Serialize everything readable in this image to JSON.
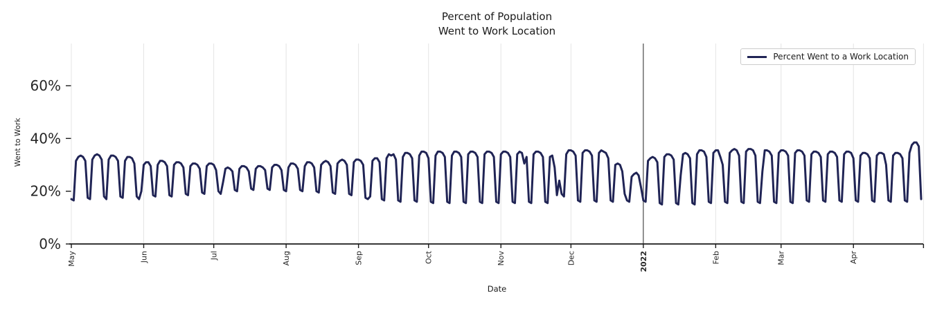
{
  "title": {
    "line1": "Percent of Population",
    "line2": "Went to Work Location"
  },
  "axes": {
    "x_label": "Date",
    "y_label": "Went to Work"
  },
  "legend": {
    "label": "Percent Went to a Work Location"
  },
  "colors": {
    "line": "#202455",
    "grid": "#e4e4e4",
    "vline": "#3b3b3b",
    "axis": "#1a1a1a",
    "text": "#262626"
  },
  "chart_data": {
    "type": "line",
    "title": "Percent of Population\nWent to Work Location",
    "xlabel": "Date",
    "ylabel": "Went to Work",
    "ylim": [
      0,
      76
    ],
    "grid": "vertical-month-gridlines",
    "legend_position": "upper right",
    "x_start_date": "2021-05-01",
    "frequency": "daily",
    "y_ticks": [
      {
        "label": "0%",
        "value": 0
      },
      {
        "label": "20%",
        "value": 20
      },
      {
        "label": "40%",
        "value": 40
      },
      {
        "label": "60%",
        "value": 60
      }
    ],
    "month_ticks": [
      {
        "label": "May",
        "day_offset": 0,
        "bold": false
      },
      {
        "label": "Jun",
        "day_offset": 31,
        "bold": false
      },
      {
        "label": "Jul",
        "day_offset": 61,
        "bold": false
      },
      {
        "label": "Aug",
        "day_offset": 92,
        "bold": false
      },
      {
        "label": "Sep",
        "day_offset": 123,
        "bold": false
      },
      {
        "label": "Oct",
        "day_offset": 153,
        "bold": false
      },
      {
        "label": "Nov",
        "day_offset": 184,
        "bold": false
      },
      {
        "label": "Dec",
        "day_offset": 214,
        "bold": false
      },
      {
        "label": "2022",
        "day_offset": 245,
        "bold": true
      },
      {
        "label": "Feb",
        "day_offset": 276,
        "bold": false
      },
      {
        "label": "Mar",
        "day_offset": 304,
        "bold": false
      },
      {
        "label": "Apr",
        "day_offset": 335,
        "bold": false
      },
      {
        "label": "",
        "day_offset": 365,
        "bold": false
      }
    ],
    "event_line": {
      "label": "2022",
      "day_offset": 245
    },
    "series": [
      {
        "name": "Percent Went to a Work Location",
        "color": "#202455",
        "values_pct": [
          17,
          16.5,
          31.5,
          33,
          33.5,
          33,
          31.5,
          17.5,
          17,
          32,
          33.5,
          34,
          33.5,
          32,
          18,
          17,
          32,
          33.5,
          33.5,
          33,
          31.5,
          18,
          17.5,
          31.5,
          33,
          33,
          32.5,
          30.5,
          18,
          17,
          20,
          30,
          31,
          31,
          29.5,
          18.5,
          18,
          30,
          31.5,
          31.5,
          31,
          29.5,
          18.5,
          18,
          30,
          31,
          31,
          30.5,
          29,
          19,
          18.5,
          29.5,
          30.5,
          30.5,
          30,
          28.5,
          19.5,
          19,
          29.5,
          30.5,
          30.5,
          30,
          28,
          20,
          19,
          23.5,
          28.5,
          29,
          28.5,
          27.5,
          20.5,
          20,
          28.5,
          29.5,
          29.5,
          29,
          27.5,
          21,
          20.5,
          28.5,
          29.5,
          29.5,
          29,
          28,
          21,
          20.5,
          29,
          30,
          30,
          29.5,
          28,
          20.5,
          20,
          29,
          30.5,
          30.5,
          30,
          28.5,
          20.5,
          20,
          29.5,
          31,
          31,
          30.5,
          29,
          20,
          19.5,
          30,
          31,
          31.5,
          31,
          29.5,
          19.5,
          19,
          30.5,
          31.5,
          32,
          31.5,
          30,
          19,
          18.5,
          31,
          32,
          32,
          31.5,
          30,
          17.5,
          17,
          18,
          31.5,
          32.5,
          32.5,
          31,
          17,
          16.5,
          32.5,
          34,
          33.5,
          34,
          32,
          16.5,
          16,
          33,
          34.5,
          34.5,
          34,
          32.5,
          16.5,
          16,
          33.5,
          35,
          35,
          34.5,
          32.5,
          16,
          15.5,
          33.5,
          35,
          35,
          34.5,
          33,
          16,
          15.5,
          33.5,
          35,
          35,
          34.5,
          33,
          16,
          15.5,
          34,
          35,
          35,
          34.5,
          33,
          16,
          15.5,
          34,
          35,
          35,
          34.5,
          33,
          16,
          15.5,
          34,
          35,
          35,
          34.5,
          33,
          16,
          15.5,
          34,
          35,
          34.5,
          30.5,
          33,
          16,
          15.5,
          34,
          35,
          35,
          34.5,
          33,
          16,
          15.5,
          33,
          33.5,
          29,
          18.5,
          24,
          19,
          18,
          34,
          35.5,
          35.5,
          35,
          33.5,
          16.5,
          16,
          34.5,
          35.5,
          35.5,
          35,
          33.5,
          16.5,
          16,
          34.5,
          35.5,
          35,
          34.5,
          32.5,
          16.5,
          16,
          30,
          30.5,
          30,
          27.5,
          19,
          16.5,
          16,
          25.5,
          26.5,
          27,
          26,
          21.5,
          16.5,
          16,
          31.5,
          32.5,
          33,
          32.5,
          31,
          15.5,
          15,
          33,
          34,
          34,
          33.5,
          32,
          15.5,
          15,
          26,
          34,
          34.5,
          34,
          32.5,
          15.5,
          15,
          34,
          35.5,
          35.5,
          35,
          33,
          16,
          15.5,
          34.5,
          35.5,
          35.5,
          33,
          30,
          16,
          15.5,
          34.5,
          35.5,
          36,
          35.5,
          33.5,
          16,
          15.5,
          35,
          36,
          36,
          35.5,
          33.5,
          16,
          15.5,
          27.5,
          35.5,
          35.5,
          35,
          33.5,
          16,
          15.5,
          34.5,
          35.5,
          35.5,
          35,
          33.5,
          16,
          15.5,
          34.5,
          35.5,
          35.5,
          35,
          33.5,
          16.5,
          16,
          34,
          35,
          35,
          34.5,
          33,
          16.5,
          16,
          34,
          35,
          35,
          34.5,
          33,
          16.5,
          16,
          34,
          35,
          35,
          34.5,
          32.5,
          16.5,
          16,
          33.5,
          34.5,
          34.5,
          34,
          32.5,
          16.5,
          16,
          33.5,
          34.5,
          34.5,
          34,
          30,
          16.5,
          16,
          33.5,
          34.5,
          34.5,
          34,
          32.5,
          16.5,
          16,
          34.5,
          37.5,
          38.5,
          38.5,
          37,
          17
        ]
      }
    ]
  }
}
